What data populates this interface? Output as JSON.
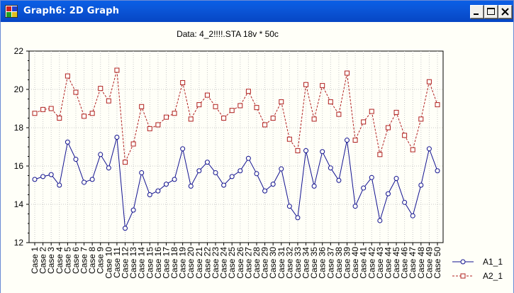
{
  "window": {
    "title": "Graph6: 2D Graph",
    "controls": {
      "minimize": "minimize",
      "maximize": "maximize",
      "close": "close"
    }
  },
  "colors": {
    "titlebar": "#0a5fe6",
    "series1": "#101090",
    "series2": "#b02020",
    "grid": "#c8c8c8",
    "background": "#fffff8"
  },
  "chart_data": {
    "type": "line",
    "title": "Data: 4_2!!!!.STA 18v * 50c",
    "xlabel": "",
    "ylabel": "",
    "ylim": [
      12,
      22
    ],
    "yticks": [
      12,
      14,
      16,
      18,
      20,
      22
    ],
    "grid": true,
    "legend": "right",
    "categories": [
      "Case 1",
      "Case 2",
      "Case 3",
      "Case 4",
      "Case 5",
      "Case 6",
      "Case 7",
      "Case 8",
      "Case 9",
      "Case 10",
      "Case 11",
      "Case 12",
      "Case 13",
      "Case 14",
      "Case 15",
      "Case 16",
      "Case 17",
      "Case 18",
      "Case 19",
      "Case 20",
      "Case 21",
      "Case 22",
      "Case 23",
      "Case 24",
      "Case 25",
      "Case 26",
      "Case 27",
      "Case 28",
      "Case 29",
      "Case 30",
      "Case 31",
      "Case 32",
      "Case 33",
      "Case 34",
      "Case 35",
      "Case 36",
      "Case 37",
      "Case 38",
      "Case 39",
      "Case 40",
      "Case 41",
      "Case 42",
      "Case 43",
      "Case 44",
      "Case 45",
      "Case 46",
      "Case 47",
      "Case 48",
      "Case 49",
      "Case 50"
    ],
    "series": [
      {
        "name": "A1_1",
        "marker": "circle",
        "line": "solid",
        "values": [
          15.3,
          15.45,
          15.55,
          15.0,
          17.25,
          16.35,
          15.15,
          15.3,
          16.6,
          15.9,
          17.5,
          12.75,
          13.7,
          15.65,
          14.5,
          14.7,
          15.05,
          15.3,
          16.9,
          14.95,
          15.75,
          16.2,
          15.65,
          15.0,
          15.45,
          15.75,
          16.4,
          15.6,
          14.7,
          15.05,
          15.85,
          13.9,
          13.3,
          16.8,
          14.95,
          16.75,
          15.9,
          15.25,
          17.35,
          13.9,
          14.85,
          15.4,
          13.15,
          14.55,
          15.35,
          14.1,
          13.4,
          15.0,
          16.9,
          15.75
        ]
      },
      {
        "name": "A2_1",
        "marker": "square",
        "line": "dashed",
        "values": [
          18.75,
          18.95,
          19.0,
          18.5,
          20.7,
          19.85,
          18.6,
          18.75,
          20.05,
          19.4,
          21.0,
          16.2,
          17.15,
          19.1,
          17.95,
          18.15,
          18.55,
          18.75,
          20.35,
          18.45,
          19.2,
          19.7,
          19.1,
          18.5,
          18.9,
          19.15,
          19.9,
          19.05,
          18.15,
          18.5,
          19.35,
          17.4,
          16.8,
          20.25,
          18.45,
          20.2,
          19.35,
          18.7,
          20.85,
          17.35,
          18.3,
          18.85,
          16.6,
          18.0,
          18.8,
          17.6,
          16.85,
          18.45,
          20.4,
          19.2
        ]
      }
    ]
  }
}
